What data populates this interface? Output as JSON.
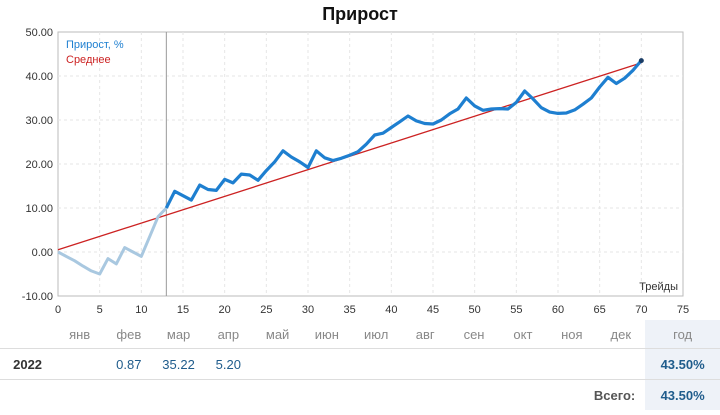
{
  "chart_data": {
    "type": "line",
    "title": "Прирост",
    "xlabel": "Трейды",
    "ylabel": "",
    "xlim": [
      0,
      75
    ],
    "ylim": [
      -10,
      50
    ],
    "xticks": [
      0,
      5,
      10,
      15,
      20,
      25,
      30,
      35,
      40,
      45,
      50,
      55,
      60,
      65,
      70,
      75
    ],
    "yticks": [
      "-10.00",
      "0.00",
      "10.00",
      "20.00",
      "30.00",
      "40.00",
      "50.00"
    ],
    "grid": true,
    "legend_position": "top-left",
    "series": [
      {
        "name": "Прирост, %",
        "color": "#1e7fd0",
        "light_color": "#a9c8e0",
        "light_until": 13,
        "x": [
          0,
          1,
          2,
          3,
          4,
          5,
          6,
          7,
          8,
          9,
          10,
          11,
          12,
          13,
          14,
          15,
          16,
          17,
          18,
          19,
          20,
          21,
          22,
          23,
          24,
          25,
          26,
          27,
          28,
          29,
          30,
          31,
          32,
          33,
          34,
          35,
          36,
          37,
          38,
          39,
          40,
          41,
          42,
          43,
          44,
          45,
          46,
          47,
          48,
          49,
          50,
          51,
          52,
          53,
          54,
          55,
          56,
          57,
          58,
          59,
          60,
          61,
          62,
          63,
          64,
          65,
          66,
          67,
          68,
          69,
          70
        ],
        "values": [
          0.0,
          -1.0,
          -2.0,
          -3.2,
          -4.3,
          -5.0,
          -1.5,
          -2.7,
          1.0,
          0.0,
          -1.0,
          3.5,
          8.0,
          10.0,
          13.8,
          12.8,
          11.8,
          15.2,
          14.2,
          14.0,
          16.5,
          15.7,
          17.7,
          17.5,
          16.3,
          18.5,
          20.5,
          23.0,
          21.6,
          20.5,
          19.2,
          23.0,
          21.4,
          20.8,
          21.3,
          22.0,
          22.8,
          24.5,
          26.6,
          27.0,
          28.3,
          29.6,
          30.9,
          29.8,
          29.2,
          29.1,
          30.0,
          31.4,
          32.5,
          35.0,
          33.2,
          32.2,
          32.5,
          32.6,
          32.5,
          34.0,
          36.6,
          34.8,
          32.8,
          31.8,
          31.5,
          31.6,
          32.3,
          33.6,
          35.0,
          37.5,
          39.7,
          38.3,
          39.5,
          41.3,
          43.5
        ]
      },
      {
        "name": "Среднее",
        "color": "#cc2222",
        "x": [
          0,
          70
        ],
        "values": [
          0.5,
          43.0
        ]
      }
    ],
    "marker_x": 13
  },
  "table": {
    "headers": [
      "",
      "янв",
      "фев",
      "мар",
      "апр",
      "май",
      "июн",
      "июл",
      "авг",
      "сен",
      "окт",
      "ноя",
      "дек",
      "год"
    ],
    "rows": [
      {
        "year": "2022",
        "cells": [
          "",
          "0.87",
          "35.22",
          "5.20",
          "",
          "",
          "",
          "",
          "",
          "",
          "",
          ""
        ],
        "total": "43.50%"
      }
    ],
    "total_label": "Всего:",
    "total_value": "43.50%"
  }
}
